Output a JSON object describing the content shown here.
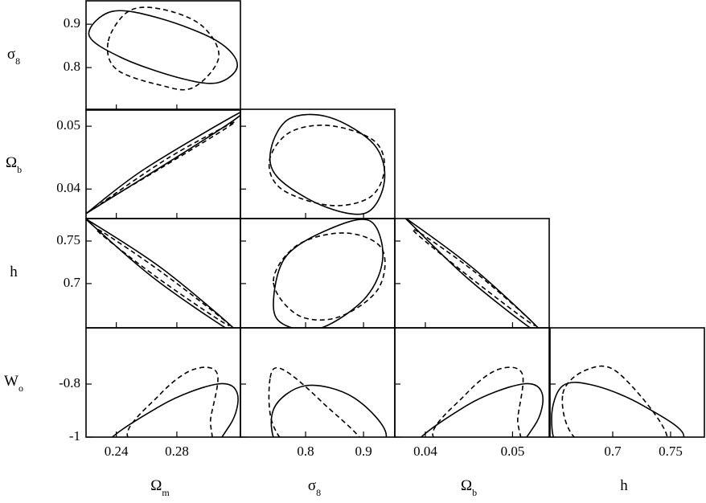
{
  "chart_data": [
    {
      "type": "contour",
      "xlim": [
        0.22,
        0.322
      ],
      "ylim": [
        0.702,
        0.954
      ],
      "xticks": [
        0.24,
        0.28
      ],
      "yticks": [
        0.8,
        0.9
      ],
      "ylabel": {
        "text": "σ",
        "subscript": "8"
      },
      "series": [
        {
          "style": "solid",
          "color": "#000000",
          "x": [
            0.2219,
            0.2373,
            0.2693,
            0.3067,
            0.32,
            0.3067,
            0.28,
            0.2427
          ],
          "y": [
            0.8759,
            0.9296,
            0.913,
            0.8611,
            0.8056,
            0.7648,
            0.7778,
            0.8241
          ]
        },
        {
          "style": "dashed",
          "color": "#000000",
          "x": [
            0.2347,
            0.248,
            0.2693,
            0.296,
            0.3077,
            0.2907,
            0.2693,
            0.24
          ],
          "y": [
            0.8611,
            0.9296,
            0.9352,
            0.8981,
            0.8241,
            0.7537,
            0.7593,
            0.7963
          ]
        }
      ]
    },
    {
      "type": "contour",
      "xlim": [
        0.22,
        0.322
      ],
      "ylim": [
        0.0353,
        0.0527
      ],
      "xticks": [
        0.24,
        0.28
      ],
      "yticks": [
        0.04,
        0.05
      ],
      "ylabel": {
        "text": "Ω",
        "subscript": "b"
      },
      "series": [
        {
          "style": "solid",
          "color": "#000000",
          "x": [
            0.2224,
            0.2587,
            0.3195,
            0.3173,
            0.28,
            0.2267
          ],
          "y": [
            0.03654,
            0.0432,
            0.0519,
            0.0509,
            0.0451,
            0.0371
          ]
        },
        {
          "style": "dashed",
          "color": "#000000",
          "x": [
            0.2336,
            0.2747,
            0.3147,
            0.312,
            0.272,
            0.2363
          ],
          "y": [
            0.03833,
            0.045,
            0.0503,
            0.0496,
            0.0437,
            0.0386
          ]
        }
      ]
    },
    {
      "type": "contour",
      "xlim": [
        0.6875,
        0.954
      ],
      "ylim": [
        0.0353,
        0.0527
      ],
      "xticks": [
        0.8,
        0.9
      ],
      "yticks": [
        0.04,
        0.05
      ],
      "series": [
        {
          "style": "solid",
          "color": "#000000",
          "x": [
            0.7403,
            0.7722,
            0.8417,
            0.918,
            0.9361,
            0.9042,
            0.8278,
            0.7514
          ],
          "y": [
            0.0464,
            0.0512,
            0.0514,
            0.0471,
            0.0413,
            0.0362,
            0.0374,
            0.0419
          ]
        },
        {
          "style": "dashed",
          "color": "#000000",
          "x": [
            0.7375,
            0.7722,
            0.8417,
            0.918,
            0.9361,
            0.9111,
            0.8417,
            0.7583
          ],
          "y": [
            0.0445,
            0.049,
            0.0501,
            0.0477,
            0.0432,
            0.0387,
            0.0374,
            0.04
          ]
        }
      ]
    },
    {
      "type": "contour",
      "xlim": [
        0.22,
        0.322
      ],
      "ylim": [
        0.648,
        0.7764
      ],
      "xticks": [
        0.24,
        0.28
      ],
      "yticks": [
        0.7,
        0.75
      ],
      "ylabel": {
        "text": "h"
      },
      "series": [
        {
          "style": "solid",
          "color": "#000000",
          "x": [
            0.2213,
            0.2693,
            0.3184,
            0.312,
            0.264,
            0.2224
          ],
          "y": [
            0.7745,
            0.7189,
            0.6462,
            0.6481,
            0.7075,
            0.7717
          ]
        },
        {
          "style": "dashed",
          "color": "#000000",
          "x": [
            0.232,
            0.2693,
            0.3109,
            0.3077,
            0.2667,
            0.2309
          ],
          "y": [
            0.7594,
            0.7142,
            0.6575,
            0.6575,
            0.7075,
            0.7566
          ]
        }
      ]
    },
    {
      "type": "contour",
      "xlim": [
        0.6875,
        0.954
      ],
      "ylim": [
        0.648,
        0.7764
      ],
      "xticks": [
        0.8,
        0.9
      ],
      "yticks": [
        0.7,
        0.75
      ],
      "series": [
        {
          "style": "solid",
          "color": "#000000",
          "x": [
            0.7444,
            0.7653,
            0.8417,
            0.9111,
            0.9333,
            0.9042,
            0.8278,
            0.7653
          ],
          "y": [
            0.6745,
            0.7311,
            0.7642,
            0.7736,
            0.7311,
            0.684,
            0.6481,
            0.6509
          ]
        },
        {
          "style": "dashed",
          "color": "#000000",
          "x": [
            0.7444,
            0.7861,
            0.8694,
            0.9319,
            0.925,
            0.8556,
            0.7861
          ],
          "y": [
            0.7028,
            0.7453,
            0.7594,
            0.7406,
            0.6934,
            0.6604,
            0.6632
          ]
        }
      ]
    },
    {
      "type": "contour",
      "xlim": [
        0.0365,
        0.0542
      ],
      "ylim": [
        0.648,
        0.7764
      ],
      "xticks": [
        0.04,
        0.05
      ],
      "yticks": [
        0.7,
        0.75
      ],
      "series": [
        {
          "style": "solid",
          "color": "#000000",
          "x": [
            0.03807,
            0.0456,
            0.0531,
            0.052,
            0.0447,
            0.0383
          ],
          "y": [
            0.7745,
            0.717,
            0.6462,
            0.6481,
            0.7075,
            0.7708
          ]
        },
        {
          "style": "dashed",
          "color": "#000000",
          "x": [
            0.0394,
            0.0456,
            0.052,
            0.0515,
            0.0451,
            0.0392
          ],
          "y": [
            0.7594,
            0.7142,
            0.6575,
            0.6575,
            0.7075,
            0.7566
          ]
        }
      ]
    },
    {
      "type": "contour",
      "xlim": [
        0.22,
        0.322
      ],
      "ylim": [
        -1,
        -0.588
      ],
      "xticks": [
        0.24,
        0.28
      ],
      "yticks": [
        -1,
        -0.8
      ],
      "ylabel": {
        "text": "W",
        "subscript": "o"
      },
      "xlabel": {
        "text": "Ω",
        "subscript": "m"
      },
      "series": [
        {
          "style": "solid",
          "color": "#000000",
          "x": [
            0.232,
            0.2693,
            0.3067,
            0.32,
            0.3147,
            0.2907
          ],
          "y": [
            -1.0485,
            -0.8818,
            -0.8,
            -0.8364,
            -0.9576,
            -1.0788
          ]
        },
        {
          "style": "dashed",
          "color": "#000000",
          "x": [
            0.248,
            0.2693,
            0.2907,
            0.3067,
            0.3024,
            0.2987
          ],
          "y": [
            -1.003,
            -0.8364,
            -0.7455,
            -0.7606,
            -0.9273,
            -1.0485
          ]
        }
      ]
    },
    {
      "type": "contour",
      "xlim": [
        0.6875,
        0.954
      ],
      "ylim": [
        -1,
        -0.588
      ],
      "xticks": [
        0.8,
        0.9
      ],
      "yticks": [
        -1,
        -0.8
      ],
      "xlabel": {
        "text": "σ",
        "subscript": "8"
      },
      "series": [
        {
          "style": "solid",
          "color": "#000000",
          "x": [
            0.7444,
            0.8,
            0.8833,
            0.9389,
            0.8556,
            0.7583
          ],
          "y": [
            -0.897,
            -0.8061,
            -0.8515,
            -1.003,
            -1.0939,
            -1.0485
          ]
        },
        {
          "style": "dashed",
          "color": "#000000",
          "x": [
            0.7389,
            0.7611,
            0.8278,
            0.9042,
            0.8,
            0.7444
          ],
          "y": [
            -0.7758,
            -0.7455,
            -0.8667,
            -1.0485,
            -1.0788,
            -0.9576
          ]
        }
      ]
    },
    {
      "type": "contour",
      "xlim": [
        0.0365,
        0.0542
      ],
      "ylim": [
        -1,
        -0.588
      ],
      "xticks": [
        0.04,
        0.05
      ],
      "yticks": [
        -1,
        -0.8
      ],
      "xlabel": {
        "text": "Ω",
        "subscript": "b"
      },
      "series": [
        {
          "style": "solid",
          "color": "#000000",
          "x": [
            0.0387,
            0.0447,
            0.0511,
            0.0534,
            0.0525,
            0.0483
          ],
          "y": [
            -1.0485,
            -0.8818,
            -0.8,
            -0.8364,
            -0.9576,
            -1.0788
          ]
        },
        {
          "style": "dashed",
          "color": "#000000",
          "x": [
            0.041,
            0.0447,
            0.0483,
            0.0511,
            0.0506,
            0.0502
          ],
          "y": [
            -1.003,
            -0.8364,
            -0.7455,
            -0.7606,
            -0.9273,
            -1.0485
          ]
        }
      ]
    },
    {
      "type": "contour",
      "xlim": [
        0.6458,
        0.7792
      ],
      "ylim": [
        -1,
        -0.588
      ],
      "xticks": [
        0.7,
        0.75
      ],
      "yticks": [
        -1,
        -0.8
      ],
      "xlabel": {
        "text": "h"
      },
      "series": [
        {
          "style": "solid",
          "color": "#000000",
          "x": [
            0.6472,
            0.6569,
            0.6847,
            0.7264,
            0.7611,
            0.7056,
            0.6569
          ],
          "y": [
            -0.9273,
            -0.8061,
            -0.8061,
            -0.8818,
            -1.003,
            -1.0788,
            -1.0485
          ]
        },
        {
          "style": "dashed",
          "color": "#000000",
          "x": [
            0.6569,
            0.6778,
            0.7056,
            0.7472,
            0.7125,
            0.6674
          ],
          "y": [
            -0.8364,
            -0.7455,
            -0.7606,
            -1.003,
            -1.0788,
            -1.003
          ]
        }
      ]
    }
  ]
}
